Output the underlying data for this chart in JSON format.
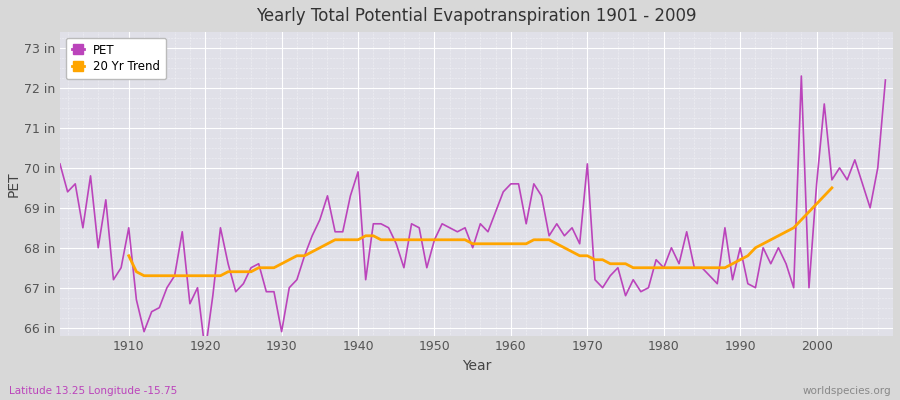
{
  "title": "Yearly Total Potential Evapotranspiration 1901 - 2009",
  "xlabel": "Year",
  "ylabel": "PET",
  "subtitle_left": "Latitude 13.25 Longitude -15.75",
  "subtitle_right": "worldspecies.org",
  "pet_color": "#bb44bb",
  "trend_color": "#ffa500",
  "fig_bg_color": "#d8d8d8",
  "plot_bg_color": "#e0e0e8",
  "ylim": [
    65.8,
    73.4
  ],
  "yticks": [
    66,
    67,
    68,
    69,
    70,
    71,
    72,
    73
  ],
  "ytick_labels": [
    "66 in",
    "67 in",
    "68 in",
    "69 in",
    "70 in",
    "71 in",
    "72 in",
    "73 in"
  ],
  "xticks": [
    1910,
    1920,
    1930,
    1940,
    1950,
    1960,
    1970,
    1980,
    1990,
    2000
  ],
  "years": [
    1901,
    1902,
    1903,
    1904,
    1905,
    1906,
    1907,
    1908,
    1909,
    1910,
    1911,
    1912,
    1913,
    1914,
    1915,
    1916,
    1917,
    1918,
    1919,
    1920,
    1921,
    1922,
    1923,
    1924,
    1925,
    1926,
    1927,
    1928,
    1929,
    1930,
    1931,
    1932,
    1933,
    1934,
    1935,
    1936,
    1937,
    1938,
    1939,
    1940,
    1941,
    1942,
    1943,
    1944,
    1945,
    1946,
    1947,
    1948,
    1949,
    1950,
    1951,
    1952,
    1953,
    1954,
    1955,
    1956,
    1957,
    1958,
    1959,
    1960,
    1961,
    1962,
    1963,
    1964,
    1965,
    1966,
    1967,
    1968,
    1969,
    1970,
    1971,
    1972,
    1973,
    1974,
    1975,
    1976,
    1977,
    1978,
    1979,
    1980,
    1981,
    1982,
    1983,
    1984,
    1985,
    1986,
    1987,
    1988,
    1989,
    1990,
    1991,
    1992,
    1993,
    1994,
    1995,
    1996,
    1997,
    1998,
    1999,
    2000,
    2001,
    2002,
    2003,
    2004,
    2005,
    2006,
    2007,
    2008,
    2009
  ],
  "pet": [
    70.1,
    69.4,
    69.6,
    68.5,
    69.8,
    68.0,
    69.2,
    67.2,
    67.5,
    68.5,
    66.7,
    65.9,
    66.4,
    66.5,
    67.0,
    67.3,
    68.4,
    66.6,
    67.0,
    65.4,
    66.8,
    68.5,
    67.6,
    66.9,
    67.1,
    67.5,
    67.6,
    66.9,
    66.9,
    65.9,
    67.0,
    67.2,
    67.8,
    68.3,
    68.7,
    69.3,
    68.4,
    68.4,
    69.3,
    69.9,
    67.2,
    68.6,
    68.6,
    68.5,
    68.1,
    67.5,
    68.6,
    68.5,
    67.5,
    68.2,
    68.6,
    68.5,
    68.4,
    68.5,
    68.0,
    68.6,
    68.4,
    68.9,
    69.4,
    69.6,
    69.6,
    68.6,
    69.6,
    69.3,
    68.3,
    68.6,
    68.3,
    68.5,
    68.1,
    70.1,
    67.2,
    67.0,
    67.3,
    67.5,
    66.8,
    67.2,
    66.9,
    67.0,
    67.7,
    67.5,
    68.0,
    67.6,
    68.4,
    67.5,
    67.5,
    67.3,
    67.1,
    68.5,
    67.2,
    68.0,
    67.1,
    67.0,
    68.0,
    67.6,
    68.0,
    67.6,
    67.0,
    72.3,
    67.0,
    69.6,
    71.6,
    69.7,
    70.0,
    69.7,
    70.2,
    69.6,
    69.0,
    70.0,
    72.2
  ],
  "trend": [
    null,
    null,
    null,
    null,
    null,
    null,
    null,
    null,
    null,
    67.8,
    67.4,
    67.3,
    67.3,
    67.3,
    67.3,
    67.3,
    67.3,
    67.3,
    67.3,
    67.3,
    67.3,
    67.3,
    67.4,
    67.4,
    67.4,
    67.4,
    67.5,
    67.5,
    67.5,
    67.6,
    67.7,
    67.8,
    67.8,
    67.9,
    68.0,
    68.1,
    68.2,
    68.2,
    68.2,
    68.2,
    68.3,
    68.3,
    68.2,
    68.2,
    68.2,
    68.2,
    68.2,
    68.2,
    68.2,
    68.2,
    68.2,
    68.2,
    68.2,
    68.2,
    68.1,
    68.1,
    68.1,
    68.1,
    68.1,
    68.1,
    68.1,
    68.1,
    68.2,
    68.2,
    68.2,
    68.1,
    68.0,
    67.9,
    67.8,
    67.8,
    67.7,
    67.7,
    67.6,
    67.6,
    67.6,
    67.5,
    67.5,
    67.5,
    67.5,
    67.5,
    67.5,
    67.5,
    67.5,
    67.5,
    67.5,
    67.5,
    67.5,
    67.5,
    67.6,
    67.7,
    67.8,
    68.0,
    68.1,
    68.2,
    68.3,
    68.4,
    68.5,
    68.7,
    68.9,
    69.1,
    69.3,
    69.5,
    null,
    null,
    null,
    null,
    null,
    null,
    null
  ]
}
